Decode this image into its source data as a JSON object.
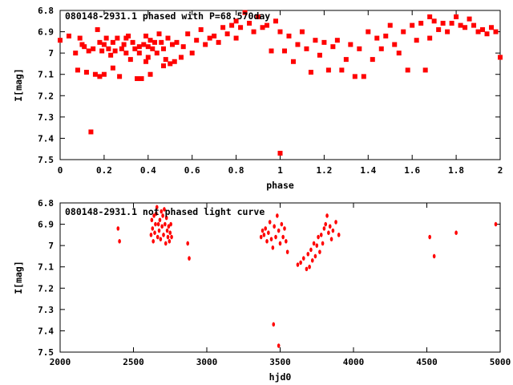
{
  "chart_data": [
    {
      "type": "scatter",
      "title": "080148-2931.1 phased with P=68.570day",
      "xlabel": "phase",
      "ylabel": "I[mag]",
      "xlim": [
        0,
        2
      ],
      "ylim": [
        6.8,
        7.5
      ],
      "y_inverted": true,
      "xticks": [
        0,
        0.2,
        0.4,
        0.6,
        0.8,
        1,
        1.2,
        1.4,
        1.6,
        1.8,
        2
      ],
      "xtick_labels": [
        "0",
        "0.2",
        "0.4",
        "0.6",
        "0.8",
        "1",
        "1.2",
        "1.4",
        "1.6",
        "1.8",
        "2"
      ],
      "yticks": [
        6.8,
        6.9,
        7,
        7.1,
        7.2,
        7.3,
        7.4,
        7.5
      ],
      "ytick_labels": [
        "6.8",
        "6.9",
        "7",
        "7.1",
        "7.2",
        "7.3",
        "7.4",
        "7.5"
      ],
      "grid": false,
      "marker_color": "#ff0000",
      "x": [
        0.0,
        0.04,
        0.07,
        0.08,
        0.09,
        0.1,
        0.11,
        0.12,
        0.13,
        0.14,
        0.15,
        0.16,
        0.17,
        0.18,
        0.18,
        0.19,
        0.2,
        0.2,
        0.21,
        0.22,
        0.23,
        0.24,
        0.24,
        0.25,
        0.26,
        0.27,
        0.28,
        0.29,
        0.3,
        0.3,
        0.31,
        0.32,
        0.33,
        0.34,
        0.35,
        0.36,
        0.36,
        0.37,
        0.38,
        0.39,
        0.39,
        0.4,
        0.4,
        0.41,
        0.41,
        0.42,
        0.43,
        0.44,
        0.45,
        0.46,
        0.47,
        0.47,
        0.48,
        0.49,
        0.5,
        0.51,
        0.52,
        0.53,
        0.55,
        0.56,
        0.58,
        0.6,
        0.62,
        0.64,
        0.66,
        0.68,
        0.7,
        0.72,
        0.74,
        0.76,
        0.78,
        0.8,
        0.8,
        0.82,
        0.84,
        0.86,
        0.88,
        0.9,
        0.92,
        0.94,
        0.96,
        0.98,
        1.0,
        1.0,
        1.02,
        1.04,
        1.06,
        1.08,
        1.1,
        1.12,
        1.14,
        1.16,
        1.18,
        1.2,
        1.22,
        1.24,
        1.26,
        1.28,
        1.3,
        1.32,
        1.34,
        1.36,
        1.38,
        1.4,
        1.42,
        1.44,
        1.46,
        1.48,
        1.5,
        1.52,
        1.54,
        1.56,
        1.58,
        1.6,
        1.62,
        1.64,
        1.66,
        1.68,
        1.68,
        1.7,
        1.72,
        1.74,
        1.76,
        1.78,
        1.8,
        1.82,
        1.84,
        1.86,
        1.88,
        1.9,
        1.92,
        1.94,
        1.96,
        1.98,
        2.0
      ],
      "y": [
        6.94,
        6.92,
        7.0,
        7.08,
        6.93,
        6.96,
        6.97,
        7.09,
        6.99,
        7.37,
        6.98,
        7.1,
        6.89,
        6.95,
        7.11,
        6.99,
        7.1,
        6.96,
        6.93,
        6.98,
        7.01,
        7.07,
        6.95,
        6.99,
        6.93,
        7.11,
        6.98,
        6.96,
        7.0,
        6.93,
        6.92,
        7.03,
        6.95,
        6.98,
        7.12,
        6.97,
        7.0,
        7.12,
        6.96,
        7.04,
        6.92,
        7.02,
        6.97,
        6.94,
        7.1,
        6.98,
        6.95,
        7.0,
        6.91,
        6.95,
        7.06,
        6.98,
        7.03,
        6.93,
        7.05,
        6.96,
        7.04,
        6.95,
        7.02,
        6.97,
        6.91,
        7.0,
        6.94,
        6.89,
        6.96,
        6.93,
        6.92,
        6.95,
        6.88,
        6.91,
        6.87,
        6.85,
        6.93,
        6.88,
        6.81,
        6.86,
        6.9,
        6.83,
        6.88,
        6.87,
        6.99,
        6.85,
        7.47,
        6.9,
        6.99,
        6.92,
        7.04,
        6.96,
        6.9,
        6.98,
        7.09,
        6.94,
        7.01,
        6.95,
        7.08,
        6.97,
        6.94,
        7.08,
        7.03,
        6.96,
        7.11,
        6.98,
        7.11,
        6.9,
        7.03,
        6.93,
        6.98,
        6.92,
        6.87,
        6.96,
        7.0,
        6.9,
        7.08,
        6.87,
        6.94,
        6.86,
        7.08,
        6.93,
        6.83,
        6.85,
        6.89,
        6.86,
        6.9,
        6.86,
        6.83,
        6.87,
        6.88,
        6.84,
        6.87,
        6.9,
        6.89,
        6.91,
        6.88,
        6.9,
        7.02
      ]
    },
    {
      "type": "scatter",
      "title": "080148-2931.1 not phased light curve",
      "xlabel": "hjd0",
      "ylabel": "I[mag]",
      "xlim": [
        2000,
        5000
      ],
      "ylim": [
        6.8,
        7.5
      ],
      "y_inverted": true,
      "xticks": [
        2000,
        2500,
        3000,
        3500,
        4000,
        4500,
        5000
      ],
      "xtick_labels": [
        "2000",
        "2500",
        "3000",
        "3500",
        "4000",
        "4500",
        "5000"
      ],
      "yticks": [
        6.8,
        6.9,
        7,
        7.1,
        7.2,
        7.3,
        7.4,
        7.5
      ],
      "ytick_labels": [
        "6.8",
        "6.9",
        "7",
        "7.1",
        "7.2",
        "7.3",
        "7.4",
        "7.5"
      ],
      "grid": false,
      "marker_color": "#ff0000",
      "x": [
        2395,
        2405,
        2620,
        2625,
        2630,
        2635,
        2640,
        2645,
        2650,
        2655,
        2660,
        2665,
        2670,
        2675,
        2680,
        2685,
        2690,
        2695,
        2700,
        2705,
        2710,
        2715,
        2720,
        2725,
        2730,
        2735,
        2740,
        2745,
        2750,
        2755,
        2760,
        2870,
        2880,
        3370,
        3380,
        3390,
        3400,
        3410,
        3420,
        3430,
        3440,
        3450,
        3460,
        3470,
        3480,
        3490,
        3500,
        3510,
        3520,
        3530,
        3540,
        3550,
        3455,
        3490,
        3620,
        3640,
        3660,
        3680,
        3690,
        3700,
        3710,
        3720,
        3730,
        3740,
        3750,
        3760,
        3770,
        3780,
        3790,
        3800,
        3810,
        3820,
        3830,
        3840,
        3850,
        3860,
        3880,
        3900,
        4520,
        4550,
        4700,
        4970
      ],
      "y": [
        6.92,
        6.98,
        6.95,
        6.88,
        6.92,
        6.98,
        6.86,
        6.94,
        6.9,
        6.85,
        6.82,
        6.96,
        6.9,
        6.93,
        6.88,
        6.97,
        6.84,
        6.91,
        6.86,
        6.95,
        6.83,
        6.9,
        6.99,
        6.87,
        6.93,
        6.96,
        6.91,
        6.98,
        6.94,
        6.9,
        6.96,
        6.99,
        7.06,
        6.96,
        6.93,
        6.95,
        6.92,
        6.98,
        6.94,
        6.89,
        6.97,
        7.01,
        6.91,
        6.96,
        6.86,
        6.93,
        6.99,
        6.9,
        6.96,
        6.92,
        6.98,
        7.03,
        7.37,
        7.47,
        7.09,
        7.08,
        7.06,
        7.11,
        7.04,
        7.1,
        7.02,
        7.07,
        6.99,
        7.05,
        7.0,
        6.96,
        7.03,
        6.95,
        6.99,
        6.92,
        6.9,
        6.86,
        6.94,
        6.91,
        6.97,
        6.93,
        6.89,
        6.95,
        6.96,
        7.05,
        6.94,
        6.9
      ]
    }
  ]
}
